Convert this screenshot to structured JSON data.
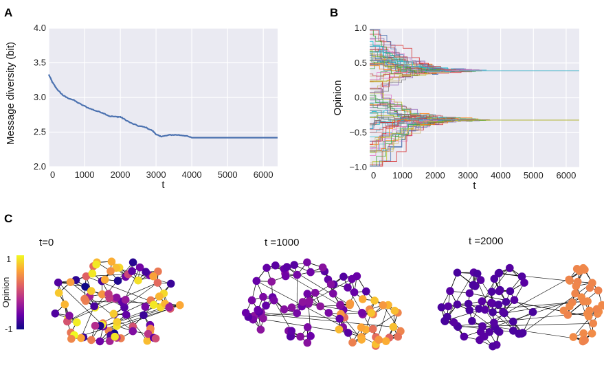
{
  "panels": {
    "a": {
      "label": "A"
    },
    "b": {
      "label": "B"
    },
    "c": {
      "label": "C"
    }
  },
  "colorbar": {
    "label": "Opinion",
    "max_label": "1",
    "min_label": "-1"
  },
  "network_titles": [
    "t=0",
    "t =1000",
    "t =2000"
  ],
  "colors": {
    "plot_bg": "#eaeaf2",
    "grid": "#ffffff",
    "line": "#4c72b0",
    "edge": "#111111",
    "cmap": [
      "#0d0887",
      "#6a00a8",
      "#b12a90",
      "#e16462",
      "#fca636",
      "#f0f921"
    ]
  },
  "chart_data": [
    {
      "type": "line",
      "xlabel": "t",
      "ylabel": "Message diversity (bit)",
      "xlim": [
        0,
        6400
      ],
      "ylim": [
        2.0,
        4.0
      ],
      "xticks": [
        0,
        1000,
        2000,
        3000,
        4000,
        5000,
        6000
      ],
      "yticks": [
        2.0,
        2.5,
        3.0,
        3.5,
        4.0
      ],
      "ytick_labels": [
        "2.0",
        "2.5",
        "3.0",
        "3.5",
        "4.0"
      ],
      "grid": true,
      "series": [
        {
          "x": [
            0,
            100,
            200,
            300,
            400,
            500,
            700,
            900,
            1100,
            1300,
            1500,
            1700,
            1900,
            2000,
            2100,
            2300,
            2500,
            2700,
            2900,
            3000,
            3100,
            3200,
            3400,
            3600,
            3800,
            4000,
            4500,
            5000,
            5500,
            6000,
            6400
          ],
          "y": [
            3.33,
            3.22,
            3.14,
            3.08,
            3.03,
            3.0,
            2.96,
            2.9,
            2.85,
            2.81,
            2.78,
            2.73,
            2.72,
            2.72,
            2.69,
            2.63,
            2.59,
            2.57,
            2.52,
            2.47,
            2.44,
            2.44,
            2.46,
            2.46,
            2.45,
            2.42,
            2.42,
            2.42,
            2.42,
            2.42,
            2.42
          ]
        }
      ]
    },
    {
      "type": "line",
      "xlabel": "t",
      "ylabel": "Opinion",
      "xlim": [
        0,
        6400
      ],
      "ylim": [
        -1.0,
        1.0
      ],
      "xticks": [
        0,
        1000,
        2000,
        3000,
        4000,
        5000,
        6000
      ],
      "yticks": [
        -1.0,
        -0.5,
        0.0,
        0.5,
        1.0
      ],
      "ytick_labels": [
        "−1.0",
        "−0.5",
        "0.0",
        "0.5",
        "1.0"
      ],
      "grid": true,
      "clusters": [
        {
          "converged_value": 0.39,
          "approx_converge_t": 3400
        },
        {
          "converged_value": -0.32,
          "approx_converge_t": 3600
        }
      ]
    },
    {
      "type": "network",
      "snapshots": [
        {
          "title": "t=0"
        },
        {
          "title": "t =1000"
        },
        {
          "title": "t =2000"
        }
      ],
      "color_range": [
        -1,
        1
      ]
    }
  ]
}
